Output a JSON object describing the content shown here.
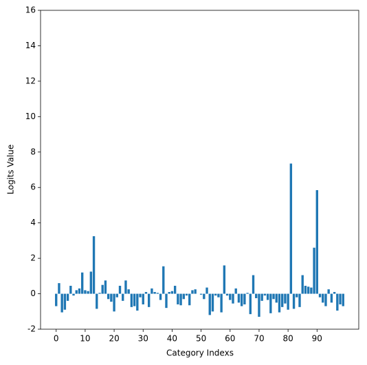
{
  "chart_data": {
    "type": "bar",
    "x_label": "Category Indexs",
    "y_label": "Logits Value",
    "color": "#1f77b4",
    "x": [
      0,
      1,
      2,
      3,
      4,
      5,
      6,
      7,
      8,
      9,
      10,
      11,
      12,
      13,
      14,
      15,
      16,
      17,
      18,
      19,
      20,
      21,
      22,
      23,
      24,
      25,
      26,
      27,
      28,
      29,
      30,
      31,
      32,
      33,
      34,
      35,
      36,
      37,
      38,
      39,
      40,
      41,
      42,
      43,
      44,
      45,
      46,
      47,
      48,
      49,
      50,
      51,
      52,
      53,
      54,
      55,
      56,
      57,
      58,
      59,
      60,
      61,
      62,
      63,
      64,
      65,
      66,
      67,
      68,
      69,
      70,
      71,
      72,
      73,
      74,
      75,
      76,
      77,
      78,
      79,
      80,
      81,
      82,
      83,
      84,
      85,
      86,
      87,
      88,
      89,
      90,
      91,
      92,
      93,
      94,
      95,
      96,
      97,
      98,
      99
    ],
    "values": [
      -0.7,
      0.6,
      -1.05,
      -0.9,
      -0.4,
      0.45,
      -0.1,
      0.2,
      0.3,
      1.2,
      0.2,
      0.15,
      1.25,
      3.25,
      -0.85,
      0.05,
      0.5,
      0.75,
      -0.3,
      -0.45,
      -1.0,
      -0.2,
      0.45,
      -0.4,
      0.75,
      0.25,
      -0.75,
      -0.7,
      -0.95,
      -0.2,
      -0.6,
      0.1,
      -0.75,
      0.3,
      0.1,
      0.05,
      -0.35,
      1.55,
      -0.8,
      0.1,
      0.15,
      0.45,
      -0.6,
      -0.65,
      -0.3,
      -0.1,
      -0.65,
      0.2,
      0.25,
      0.0,
      -0.05,
      -0.3,
      0.35,
      -1.2,
      -1.0,
      -0.1,
      -0.2,
      -1.05,
      1.6,
      -0.1,
      -0.35,
      -0.55,
      0.3,
      -0.5,
      -0.7,
      -0.6,
      0.05,
      -1.15,
      1.05,
      -0.25,
      -1.3,
      -0.4,
      -0.1,
      -0.35,
      -1.1,
      -0.3,
      -0.5,
      -1.05,
      -0.75,
      -0.55,
      -0.9,
      7.35,
      -0.85,
      -0.2,
      -0.75,
      1.05,
      0.45,
      0.4,
      0.35,
      2.6,
      5.85,
      -0.2,
      -0.5,
      -0.7,
      0.25,
      -0.5,
      0.1,
      -0.95,
      -0.6,
      -0.7
    ],
    "xlim": [
      -5.39,
      104.39
    ],
    "xticks": [
      0,
      10,
      20,
      30,
      40,
      50,
      60,
      70,
      80,
      90
    ],
    "ylim": [
      -2,
      16
    ],
    "yticks": [
      -2,
      0,
      2,
      4,
      6,
      8,
      10,
      12,
      14,
      16
    ]
  }
}
